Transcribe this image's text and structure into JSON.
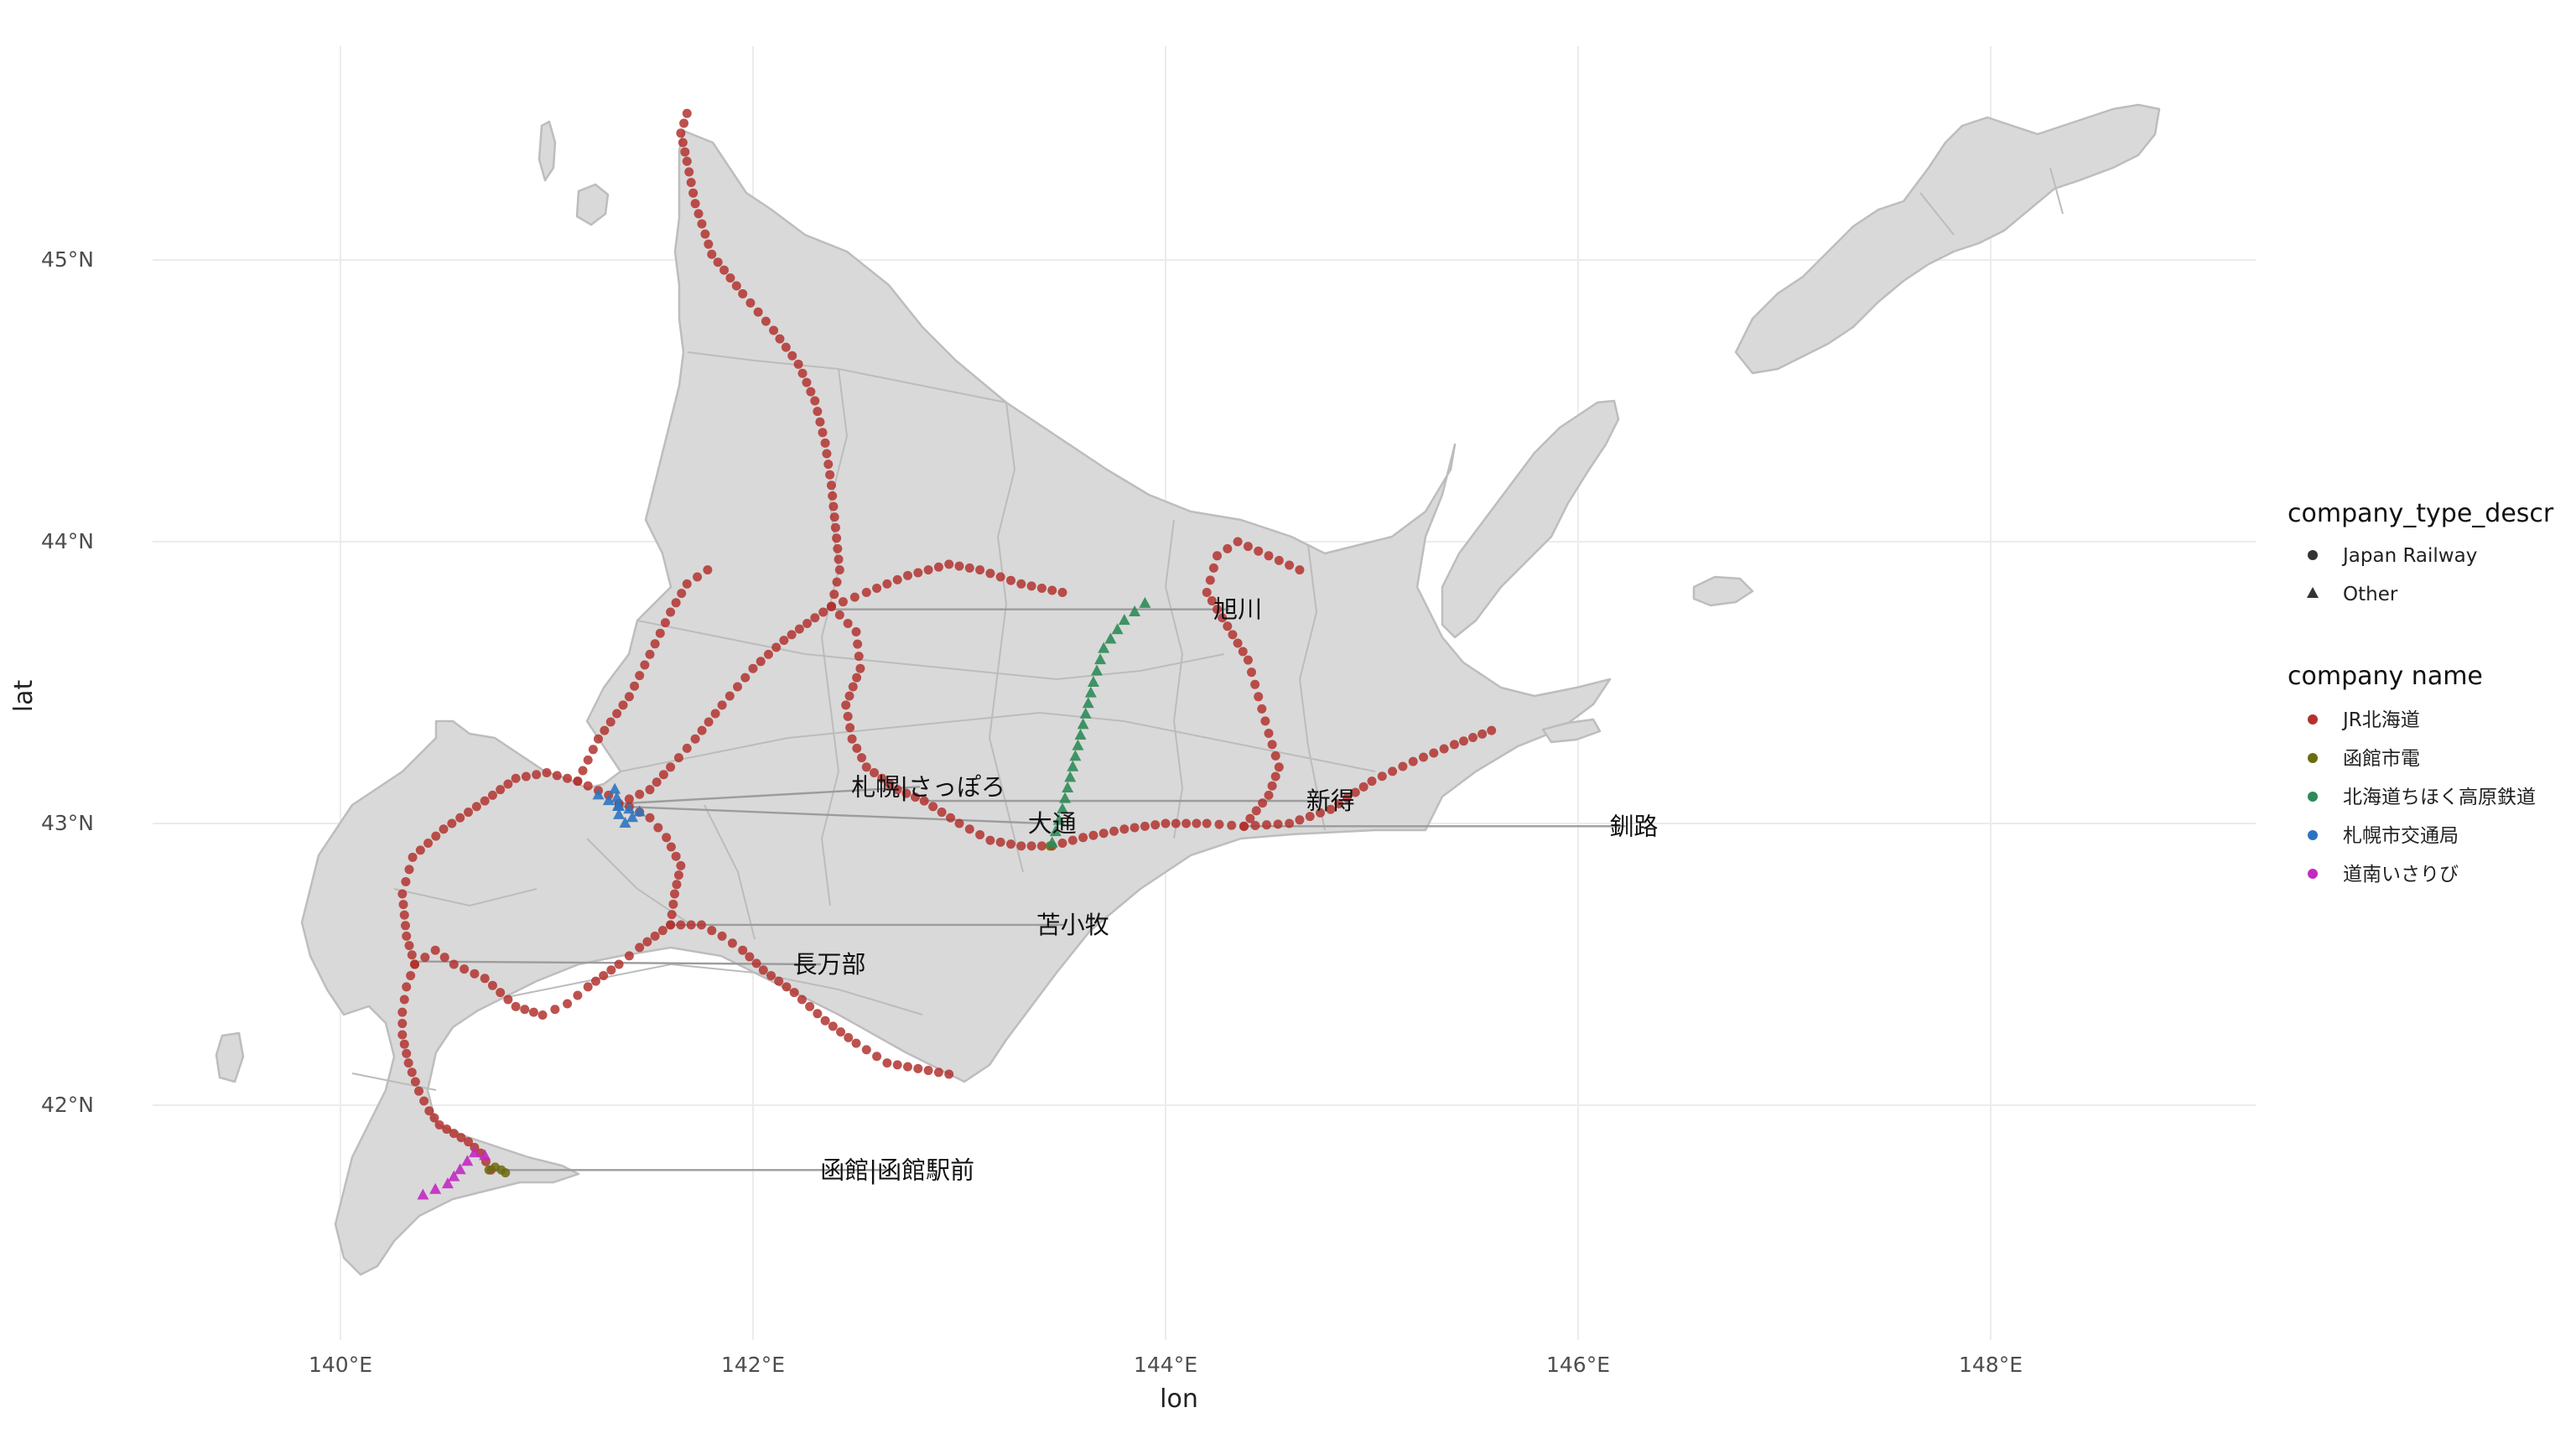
{
  "axes": {
    "xlabel": "lon",
    "ylabel": "lat",
    "x_ticks": [
      {
        "value": 140,
        "label": "140°E"
      },
      {
        "value": 142,
        "label": "142°E"
      },
      {
        "value": 144,
        "label": "144°E"
      },
      {
        "value": 146,
        "label": "146°E"
      },
      {
        "value": 148,
        "label": "148°E"
      }
    ],
    "y_ticks": [
      {
        "value": 42,
        "label": "42°N"
      },
      {
        "value": 43,
        "label": "43°N"
      },
      {
        "value": 44,
        "label": "44°N"
      },
      {
        "value": 45,
        "label": "45°N"
      }
    ],
    "xlim": [
      138.85,
      149.35
    ],
    "ylim": [
      41.14,
      45.85
    ],
    "grid": true
  },
  "legend": {
    "placement": "right",
    "shape_title": "company_type_descr",
    "shape_items": [
      {
        "label": "Japan Railway",
        "shape": "circle"
      },
      {
        "label": "Other",
        "shape": "triangle"
      }
    ],
    "color_title": "company name",
    "color_items": [
      {
        "label": "JR北海道",
        "color": "#B2322F"
      },
      {
        "label": "函館市電",
        "color": "#6B6B10"
      },
      {
        "label": "北海道ちほく高原鉄道",
        "color": "#2E8B57"
      },
      {
        "label": "札幌市交通局",
        "color": "#2D74C0"
      },
      {
        "label": "道南いさりび",
        "color": "#C229C2"
      }
    ]
  },
  "labels": [
    {
      "text": "旭川",
      "station_lon": 142.35,
      "station_lat": 43.76,
      "text_lon": 144.35,
      "text_lat": 43.76
    },
    {
      "text": "札幌|さっぽろ",
      "station_lon": 141.35,
      "station_lat": 43.07,
      "text_lon": 142.85,
      "text_lat": 43.13
    },
    {
      "text": "新得",
      "station_lon": 142.83,
      "station_lat": 43.08,
      "text_lon": 144.8,
      "text_lat": 43.08
    },
    {
      "text": "大通",
      "station_lon": 141.36,
      "station_lat": 43.06,
      "text_lon": 143.45,
      "text_lat": 43.0
    },
    {
      "text": "釧路",
      "station_lon": 144.38,
      "station_lat": 42.99,
      "text_lon": 146.27,
      "text_lat": 42.99
    },
    {
      "text": "苫小牧",
      "station_lon": 141.6,
      "station_lat": 42.64,
      "text_lon": 143.55,
      "text_lat": 42.64
    },
    {
      "text": "長万部",
      "station_lon": 140.38,
      "station_lat": 42.51,
      "text_lon": 142.37,
      "text_lat": 42.5
    },
    {
      "text": "函館|函館駅前",
      "station_lon": 140.73,
      "station_lat": 41.77,
      "text_lon": 142.7,
      "text_lat": 41.77
    }
  ],
  "chart_data": {
    "type": "scatter",
    "xlabel": "lon",
    "ylabel": "lat",
    "xlim": [
      138.85,
      149.35
    ],
    "ylim": [
      41.14,
      45.85
    ],
    "grid": true,
    "series": [
      {
        "name": "JR北海道",
        "shape": "circle",
        "color": "#B2322F",
        "lines": [
          [
            [
              140.73,
              41.77
            ],
            [
              140.68,
              41.83
            ],
            [
              140.62,
              41.87
            ],
            [
              140.55,
              41.9
            ],
            [
              140.48,
              41.93
            ],
            [
              140.43,
              41.98
            ],
            [
              140.38,
              42.05
            ],
            [
              140.33,
              42.15
            ],
            [
              140.3,
              42.25
            ],
            [
              140.3,
              42.33
            ],
            [
              140.32,
              42.42
            ],
            [
              140.36,
              42.5
            ]
          ],
          [
            [
              140.36,
              42.5
            ],
            [
              140.46,
              42.55
            ],
            [
              140.55,
              42.5
            ],
            [
              140.7,
              42.45
            ],
            [
              140.85,
              42.35
            ],
            [
              140.98,
              42.32
            ],
            [
              141.1,
              42.36
            ],
            [
              141.2,
              42.42
            ],
            [
              141.35,
              42.5
            ],
            [
              141.45,
              42.56
            ],
            [
              141.6,
              42.64
            ],
            [
              141.75,
              42.64
            ],
            [
              141.85,
              42.6
            ],
            [
              141.95,
              42.55
            ],
            [
              142.05,
              42.48
            ],
            [
              142.2,
              42.4
            ],
            [
              142.35,
              42.3
            ],
            [
              142.5,
              42.22
            ],
            [
              142.65,
              42.15
            ],
            [
              142.8,
              42.13
            ],
            [
              142.95,
              42.11
            ]
          ],
          [
            [
              141.6,
              42.64
            ],
            [
              141.62,
              42.75
            ],
            [
              141.65,
              42.85
            ],
            [
              141.58,
              42.95
            ],
            [
              141.5,
              43.02
            ],
            [
              141.4,
              43.06
            ]
          ],
          [
            [
              140.36,
              42.5
            ],
            [
              140.32,
              42.6
            ],
            [
              140.3,
              42.75
            ],
            [
              140.35,
              42.88
            ],
            [
              140.5,
              42.98
            ],
            [
              140.7,
              43.08
            ],
            [
              140.85,
              43.16
            ],
            [
              141.0,
              43.18
            ],
            [
              141.15,
              43.15
            ],
            [
              141.3,
              43.1
            ],
            [
              141.35,
              43.07
            ]
          ],
          [
            [
              141.35,
              43.07
            ],
            [
              141.5,
              43.12
            ],
            [
              141.6,
              43.2
            ],
            [
              141.72,
              43.3
            ],
            [
              141.85,
              43.42
            ],
            [
              142.0,
              43.55
            ],
            [
              142.15,
              43.65
            ],
            [
              142.3,
              43.73
            ],
            [
              142.38,
              43.77
            ]
          ],
          [
            [
              142.38,
              43.77
            ],
            [
              142.42,
              43.9
            ],
            [
              142.4,
              44.05
            ],
            [
              142.38,
              44.2
            ],
            [
              142.35,
              44.35
            ],
            [
              142.3,
              44.5
            ],
            [
              142.22,
              44.63
            ],
            [
              142.1,
              44.75
            ],
            [
              141.95,
              44.88
            ],
            [
              141.8,
              45.02
            ],
            [
              141.72,
              45.2
            ],
            [
              141.68,
              45.35
            ],
            [
              141.65,
              45.45
            ],
            [
              141.68,
              45.52
            ]
          ],
          [
            [
              142.38,
              43.77
            ],
            [
              142.5,
              43.68
            ],
            [
              142.52,
              43.55
            ],
            [
              142.45,
              43.42
            ],
            [
              142.48,
              43.3
            ],
            [
              142.55,
              43.2
            ],
            [
              142.7,
              43.12
            ],
            [
              142.83,
              43.08
            ],
            [
              143.0,
              43.0
            ],
            [
              143.15,
              42.94
            ],
            [
              143.3,
              42.92
            ],
            [
              143.45,
              42.92
            ],
            [
              143.6,
              42.95
            ],
            [
              143.8,
              42.98
            ],
            [
              144.0,
              43.0
            ],
            [
              144.2,
              43.0
            ],
            [
              144.38,
              42.99
            ]
          ],
          [
            [
              144.38,
              42.99
            ],
            [
              144.5,
              43.1
            ],
            [
              144.55,
              43.2
            ],
            [
              144.5,
              43.32
            ],
            [
              144.45,
              43.45
            ],
            [
              144.4,
              43.58
            ],
            [
              144.3,
              43.7
            ],
            [
              144.2,
              43.82
            ],
            [
              144.25,
              43.95
            ],
            [
              144.35,
              44.0
            ],
            [
              144.5,
              43.95
            ],
            [
              144.65,
              43.9
            ]
          ],
          [
            [
              144.38,
              42.99
            ],
            [
              144.6,
              43.0
            ],
            [
              144.8,
              43.05
            ],
            [
              145.0,
              43.15
            ],
            [
              145.2,
              43.22
            ],
            [
              145.4,
              43.28
            ],
            [
              145.58,
              43.33
            ]
          ],
          [
            [
              142.38,
              43.77
            ],
            [
              142.55,
              43.82
            ],
            [
              142.75,
              43.88
            ],
            [
              142.95,
              43.92
            ],
            [
              143.1,
              43.9
            ],
            [
              143.3,
              43.85
            ],
            [
              143.5,
              43.82
            ]
          ],
          [
            [
              141.15,
              43.15
            ],
            [
              141.25,
              43.3
            ],
            [
              141.4,
              43.45
            ],
            [
              141.5,
              43.6
            ],
            [
              141.6,
              43.75
            ],
            [
              141.68,
              43.85
            ],
            [
              141.78,
              43.9
            ]
          ]
        ]
      },
      {
        "name": "函館市電",
        "shape": "circle",
        "color": "#6B6B10",
        "lines": [
          [
            [
              140.72,
              41.77
            ],
            [
              140.75,
              41.78
            ],
            [
              140.78,
              41.77
            ],
            [
              140.8,
              41.76
            ]
          ]
        ],
        "points": [
          [
            143.44,
            42.92
          ]
        ]
      },
      {
        "name": "北海道ちほく高原鉄道",
        "shape": "triangle",
        "color": "#2E8B57",
        "lines": [
          [
            [
              143.45,
              42.93
            ],
            [
              143.5,
              43.05
            ],
            [
              143.55,
              43.2
            ],
            [
              143.6,
              43.35
            ],
            [
              143.65,
              43.5
            ],
            [
              143.7,
              43.62
            ],
            [
              143.8,
              43.72
            ],
            [
              143.9,
              43.78
            ]
          ]
        ]
      },
      {
        "name": "札幌市交通局",
        "shape": "triangle",
        "color": "#2D74C0",
        "lines": [
          [
            [
              141.25,
              43.1
            ],
            [
              141.3,
              43.08
            ],
            [
              141.35,
              43.06
            ],
            [
              141.4,
              43.05
            ],
            [
              141.45,
              43.04
            ],
            [
              141.38,
              43.0
            ],
            [
              141.35,
              43.03
            ],
            [
              141.34,
              43.09
            ],
            [
              141.33,
              43.12
            ]
          ]
        ]
      },
      {
        "name": "道南いさりび",
        "shape": "triangle",
        "color": "#C229C2",
        "lines": [
          [
            [
              140.4,
              41.68
            ],
            [
              140.46,
              41.7
            ],
            [
              140.52,
              41.72
            ],
            [
              140.58,
              41.77
            ],
            [
              140.65,
              41.83
            ],
            [
              140.7,
              41.82
            ]
          ]
        ]
      }
    ]
  }
}
